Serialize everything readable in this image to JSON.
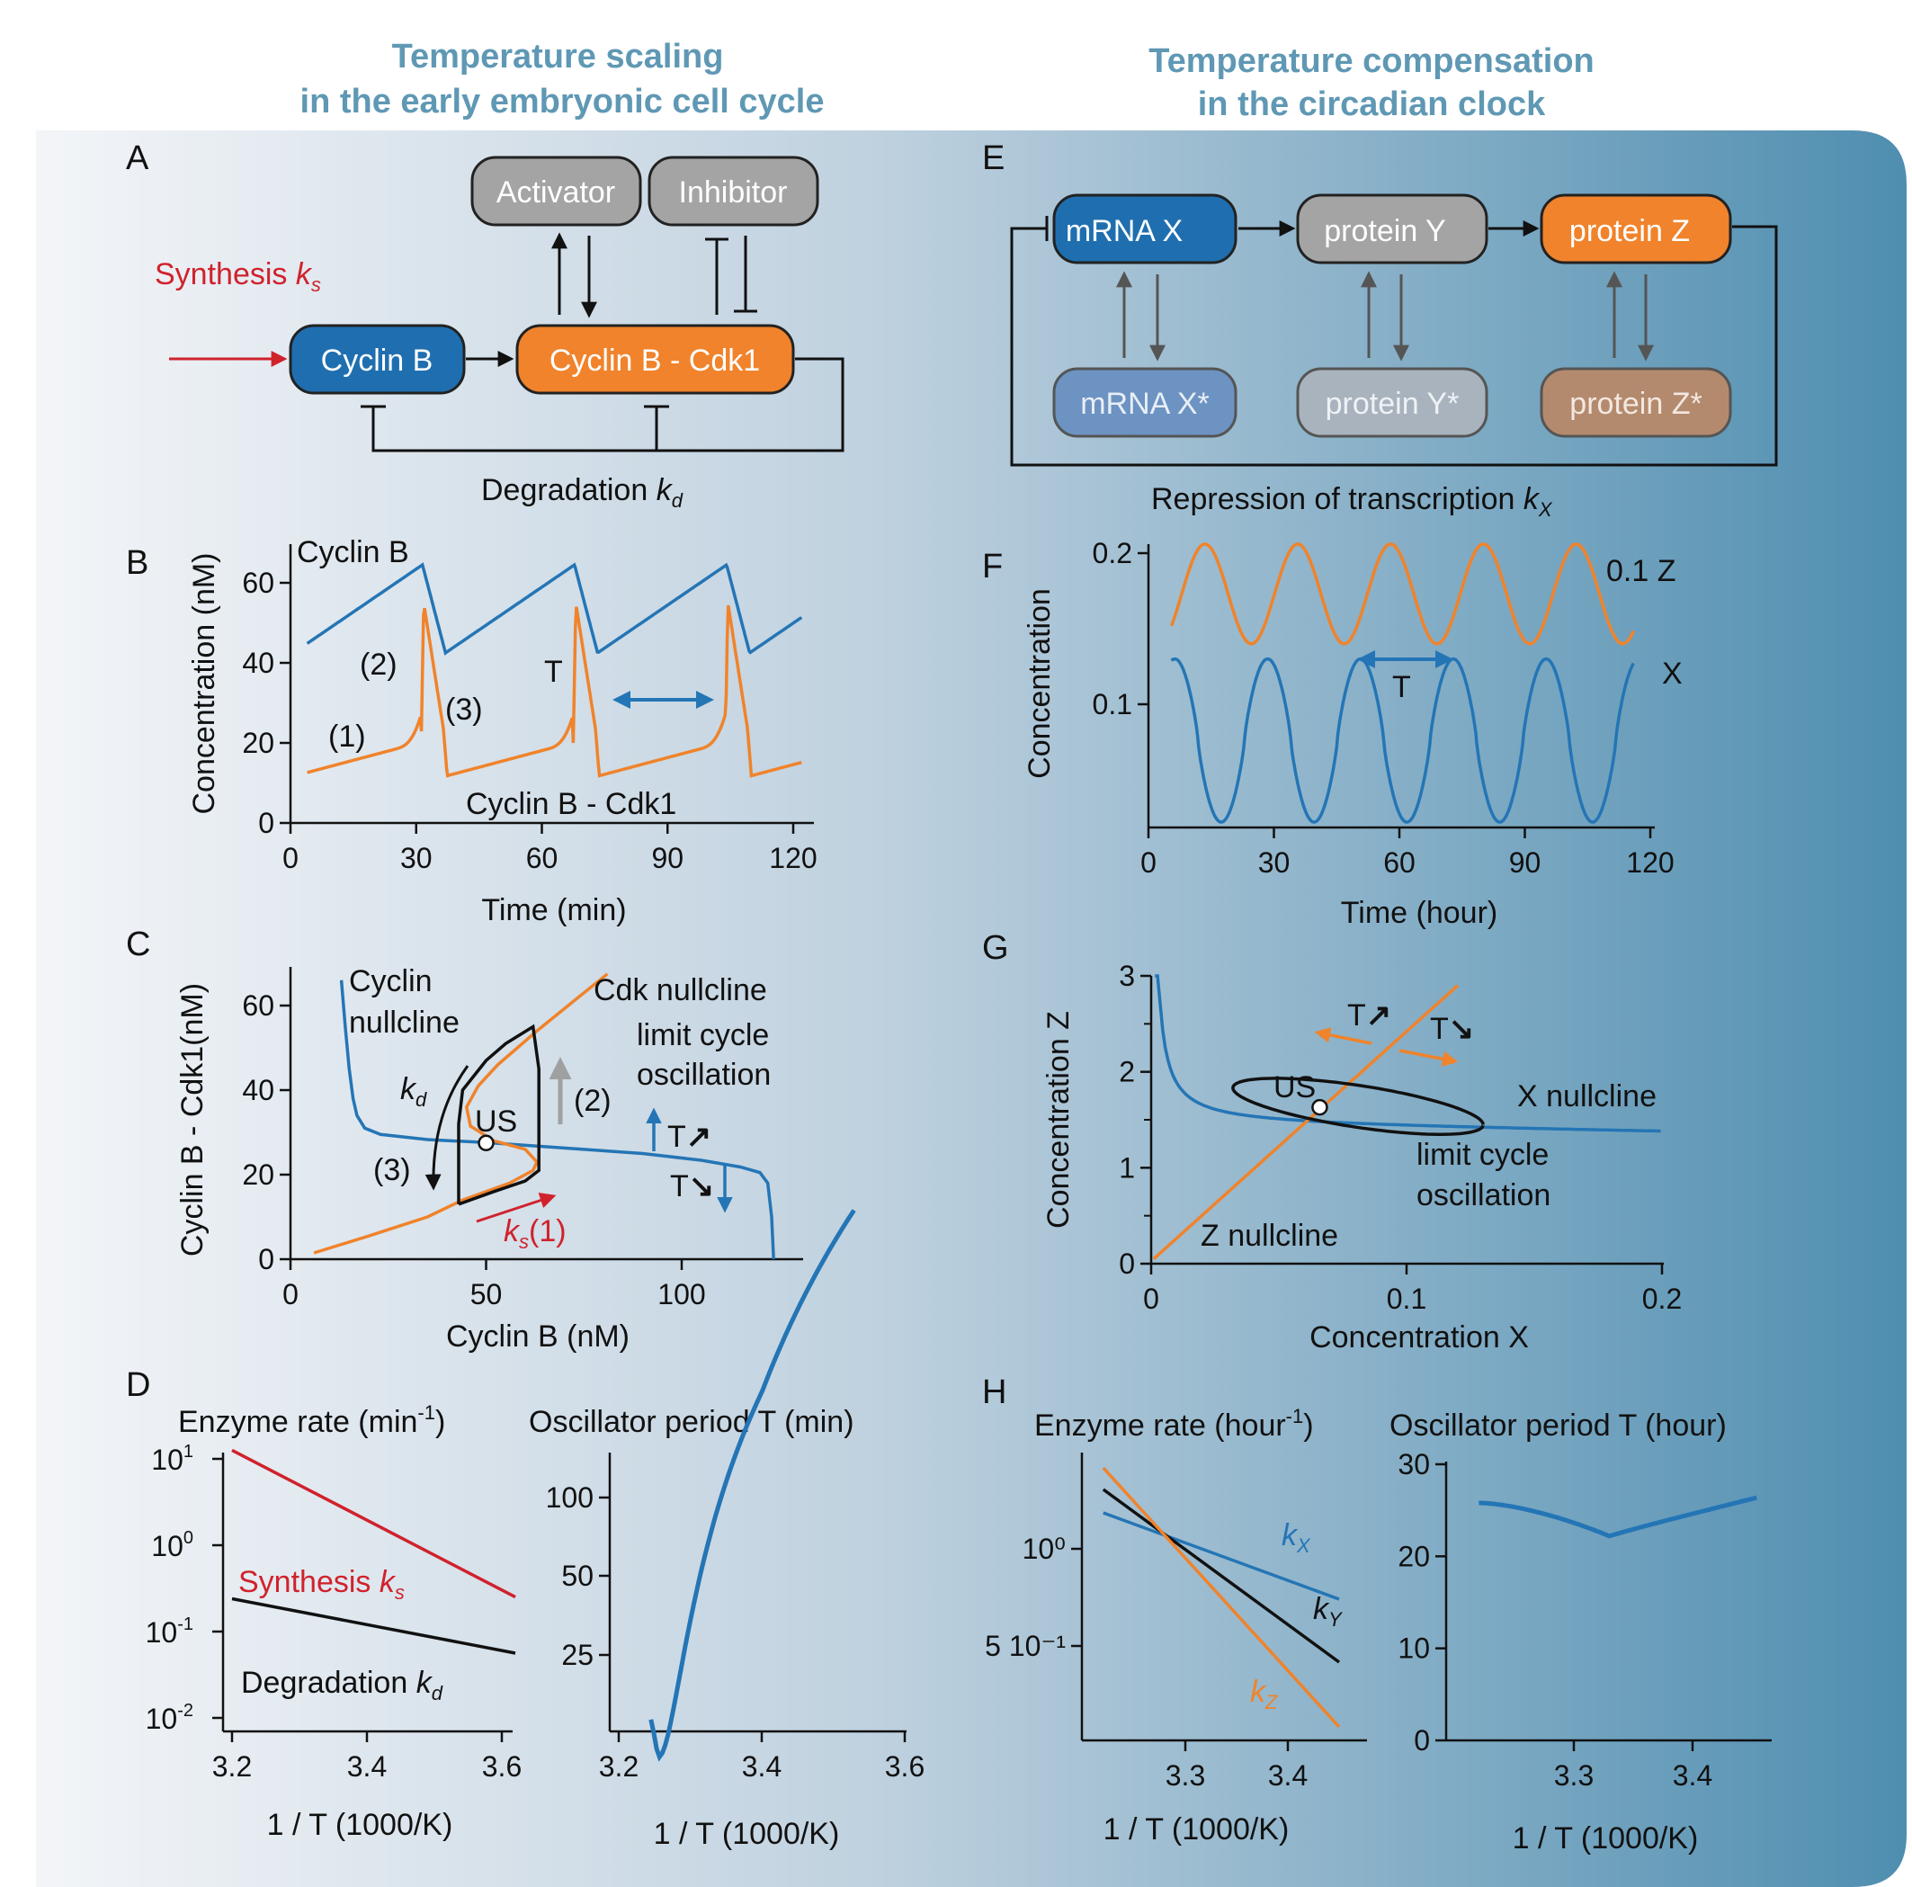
{
  "headers": {
    "left_line1": "Temperature scaling",
    "left_line2": "in the early embryonic cell cycle",
    "right_line1": "Temperature compensation",
    "right_line2": "in the circadian clock"
  },
  "panel_letters": {
    "a": "A",
    "b": "B",
    "c": "C",
    "d": "D",
    "e": "E",
    "f": "F",
    "g": "G",
    "h": "H"
  },
  "colors": {
    "blue": "#2475b5",
    "orange": "#f0832b",
    "red": "#d0222c",
    "gray": "#9a9a9a",
    "header": "#5f98b4"
  },
  "panel_a": {
    "activator": "Activator",
    "inhibitor": "Inhibitor",
    "cyclin_b": "Cyclin B",
    "complex": "Cyclin B - Cdk1",
    "synthesis": "Synthesis ",
    "synthesis_k": "k",
    "synthesis_sub": "s",
    "degradation": "Degradation ",
    "degradation_k": "k",
    "degradation_sub": "d"
  },
  "panel_b": {
    "ylabel": "Concentration (nM)",
    "xlabel": "Time (min)",
    "yticks": [
      "0",
      "20",
      "40",
      "60"
    ],
    "xticks": [
      "0",
      "30",
      "60",
      "90",
      "120"
    ],
    "label_cyclin": "Cyclin B",
    "label_complex": "Cyclin B - Cdk1",
    "label_1": "(1)",
    "label_2": "(2)",
    "label_3": "(3)",
    "label_T": "T"
  },
  "panel_c": {
    "ylabel": "Cyclin B - Cdk1(nM)",
    "xlabel": "Cyclin B (nM)",
    "yticks": [
      "0",
      "20",
      "40",
      "60"
    ],
    "xticks": [
      "0",
      "50",
      "100"
    ],
    "cyclin_null_1": "Cyclin",
    "cyclin_null_2": "nullcline",
    "cdk_null": "Cdk nullcline",
    "limit_1": "limit cycle",
    "limit_2": "oscillation",
    "kd_k": "k",
    "kd_sub": "d",
    "ks_k": "k",
    "ks_sub": "s",
    "label_1": "(1)",
    "label_2": "(2)",
    "label_3": "(3)",
    "us": "US",
    "t_up": "T",
    "t_down": "T"
  },
  "panel_d": {
    "title_left": "Enzyme rate (min",
    "title_left_sup": "-1",
    "title_left_end": ")",
    "title_right": "Oscillator period T (min)",
    "yticks_left_base": [
      "10",
      "10",
      "10",
      "10"
    ],
    "yticks_left_exp": [
      "1",
      "0",
      "-1",
      "-2"
    ],
    "yticks_right": [
      "100",
      "50",
      "25"
    ],
    "xticks": [
      "3.2",
      "3.4",
      "3.6"
    ],
    "xlabel": "1 / T (1000/K)",
    "synthesis": "Synthesis ",
    "degradation": "Degradation ",
    "k": "k",
    "s": "s",
    "d": "d"
  },
  "panel_e": {
    "mrna_x": "mRNA X",
    "protein_y": "protein Y",
    "protein_z": "protein Z",
    "mrna_x_star": "mRNA X*",
    "protein_y_star": "protein Y*",
    "protein_z_star": "protein Z*",
    "repression": "Repression of transcription ",
    "k": "k",
    "sub": "X"
  },
  "panel_f": {
    "ylabel": "Concentration",
    "xlabel": "Time (hour)",
    "yticks": [
      "0.1",
      "0.2"
    ],
    "xticks": [
      "0",
      "30",
      "60",
      "90",
      "120"
    ],
    "label_z": "0.1 Z",
    "label_x": "X",
    "label_T": "T"
  },
  "panel_g": {
    "ylabel": "Concentration Z",
    "xlabel": "Concentration X",
    "yticks": [
      "0",
      "1",
      "2",
      "3"
    ],
    "xticks": [
      "0",
      "0.1",
      "0.2"
    ],
    "us": "US",
    "x_null": "X nullcline",
    "z_null": "Z nullcline",
    "limit_1": "limit cycle",
    "limit_2": "oscillation",
    "t_up": "T",
    "t_down": "T"
  },
  "panel_h": {
    "title_left": "Enzyme rate (hour",
    "title_left_sup": "-1",
    "title_left_end": ")",
    "title_right": "Oscillator period T (hour)",
    "yticks_left": [
      "10⁰",
      "5 10⁻¹"
    ],
    "yticks_right": [
      "0",
      "10",
      "20",
      "30"
    ],
    "xticks": [
      "3.3",
      "3.4"
    ],
    "xlabel": "1 / T (1000/K)",
    "k": "k",
    "kx": "X",
    "ky": "Y",
    "kz": "Z"
  }
}
